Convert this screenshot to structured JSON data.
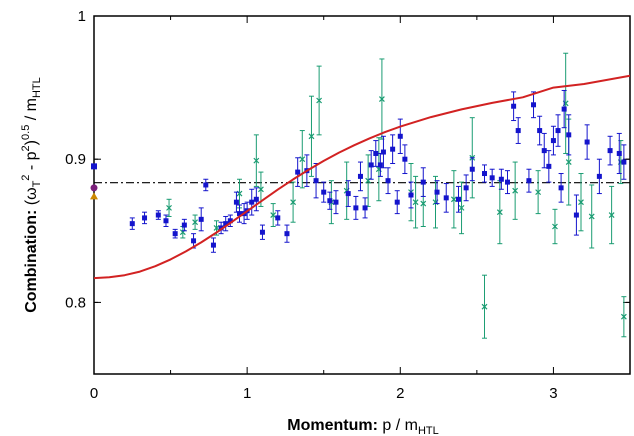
{
  "chart_data": {
    "type": "scatter",
    "xlabel": {
      "bold": "Momentum:",
      "main": " p / m",
      "sub": "HTL"
    },
    "ylabel": {
      "bold": "Combination:",
      "p1": "  (ω",
      "sub1": "T",
      "sup1": "2",
      "p2": " - p",
      "sup2": "2",
      "p3": ")",
      "sup3": "0.5",
      "p4": " / m",
      "sub2": "HTL"
    },
    "xlim": [
      0,
      3.5
    ],
    "ylim": [
      0.75,
      1.0
    ],
    "xticks": [
      0,
      1,
      2,
      3
    ],
    "xtick_labels": [
      "0",
      "1",
      "2",
      "3"
    ],
    "yticks": [
      0.8,
      0.9,
      1.0
    ],
    "ytick_labels": [
      "0.8",
      "0.9",
      "1"
    ],
    "colors": {
      "blue": "#1414cc",
      "green": "#1a9c72",
      "red": "#d22222",
      "black": "#000000",
      "purple": "#7a1f7a",
      "orange": "#cc8800"
    },
    "reference_line": {
      "y": 0.8836,
      "style": "dash-dot"
    },
    "curve": {
      "x": [
        0,
        0.1,
        0.2,
        0.3,
        0.4,
        0.5,
        0.6,
        0.7,
        0.8,
        0.9,
        1.0,
        1.1,
        1.2,
        1.3,
        1.4,
        1.5,
        1.6,
        1.7,
        1.8,
        1.9,
        2.0,
        2.2,
        2.4,
        2.6,
        2.8,
        3.0,
        3.2,
        3.5
      ],
      "y": [
        0.817,
        0.8175,
        0.819,
        0.8215,
        0.8253,
        0.83,
        0.8356,
        0.8419,
        0.8488,
        0.8562,
        0.8637,
        0.8713,
        0.8788,
        0.8859,
        0.8925,
        0.8988,
        0.9046,
        0.9098,
        0.9146,
        0.9189,
        0.9228,
        0.9294,
        0.9348,
        0.9393,
        0.9432,
        0.95,
        0.9525,
        0.9583
      ]
    },
    "series": [
      {
        "name": "blue",
        "marker": "square",
        "points": [
          [
            0.25,
            0.855,
            0.004
          ],
          [
            0.33,
            0.859,
            0.004
          ],
          [
            0.42,
            0.861,
            0.003
          ],
          [
            0.47,
            0.857,
            0.004
          ],
          [
            0.53,
            0.848,
            0.003
          ],
          [
            0.59,
            0.854,
            0.004
          ],
          [
            0.65,
            0.843,
            0.005
          ],
          [
            0.7,
            0.858,
            0.008
          ],
          [
            0.73,
            0.882,
            0.004
          ],
          [
            0.78,
            0.84,
            0.005
          ],
          [
            0.83,
            0.852,
            0.004
          ],
          [
            0.86,
            0.855,
            0.005
          ],
          [
            0.89,
            0.857,
            0.004
          ],
          [
            0.93,
            0.87,
            0.007
          ],
          [
            0.95,
            0.862,
            0.006
          ],
          [
            0.98,
            0.862,
            0.007
          ],
          [
            1.0,
            0.864,
            0.006
          ],
          [
            1.03,
            0.87,
            0.009
          ],
          [
            1.06,
            0.872,
            0.008
          ],
          [
            1.1,
            0.849,
            0.005
          ],
          [
            1.2,
            0.859,
            0.005
          ],
          [
            1.26,
            0.848,
            0.006
          ],
          [
            1.33,
            0.891,
            0.01
          ],
          [
            1.39,
            0.892,
            0.011
          ],
          [
            1.45,
            0.885,
            0.012
          ],
          [
            1.5,
            0.877,
            0.007
          ],
          [
            1.54,
            0.871,
            0.006
          ],
          [
            1.58,
            0.87,
            0.008
          ],
          [
            1.66,
            0.876,
            0.009
          ],
          [
            1.71,
            0.866,
            0.008
          ],
          [
            1.74,
            0.888,
            0.01
          ],
          [
            1.77,
            0.866,
            0.007
          ],
          [
            1.81,
            0.896,
            0.01
          ],
          [
            1.84,
            0.904,
            0.009
          ],
          [
            1.87,
            0.896,
            0.008
          ],
          [
            1.89,
            0.905,
            0.011
          ],
          [
            1.92,
            0.885,
            0.009
          ],
          [
            1.95,
            0.907,
            0.01
          ],
          [
            1.98,
            0.87,
            0.008
          ],
          [
            2.0,
            0.916,
            0.012
          ],
          [
            2.03,
            0.9,
            0.01
          ],
          [
            2.07,
            0.875,
            0.009
          ],
          [
            2.15,
            0.884,
            0.01
          ],
          [
            2.24,
            0.877,
            0.008
          ],
          [
            2.3,
            0.873,
            0.01
          ],
          [
            2.38,
            0.872,
            0.009
          ],
          [
            2.43,
            0.88,
            0.009
          ],
          [
            2.47,
            0.893,
            0.008
          ],
          [
            2.55,
            0.89,
            0.006
          ],
          [
            2.6,
            0.887,
            0.006
          ],
          [
            2.66,
            0.886,
            0.007
          ],
          [
            2.7,
            0.884,
            0.008
          ],
          [
            2.74,
            0.937,
            0.01
          ],
          [
            2.77,
            0.92,
            0.009
          ],
          [
            2.84,
            0.885,
            0.008
          ],
          [
            2.87,
            0.938,
            0.009
          ],
          [
            2.91,
            0.92,
            0.01
          ],
          [
            2.94,
            0.906,
            0.012
          ],
          [
            2.97,
            0.895,
            0.011
          ],
          [
            3.0,
            0.913,
            0.01
          ],
          [
            3.03,
            0.92,
            0.011
          ],
          [
            3.05,
            0.88,
            0.01
          ],
          [
            3.07,
            0.935,
            0.013
          ],
          [
            3.1,
            0.917,
            0.014
          ],
          [
            3.15,
            0.861,
            0.014
          ],
          [
            3.22,
            0.912,
            0.012
          ],
          [
            3.3,
            0.888,
            0.012
          ],
          [
            3.37,
            0.906,
            0.01
          ],
          [
            3.43,
            0.904,
            0.014
          ],
          [
            3.46,
            0.898,
            0.012
          ]
        ]
      },
      {
        "name": "green",
        "marker": "cross",
        "points": [
          [
            0.49,
            0.866,
            0.006
          ],
          [
            0.58,
            0.849,
            0.004
          ],
          [
            0.66,
            0.856,
            0.005
          ],
          [
            0.8,
            0.852,
            0.005
          ],
          [
            0.95,
            0.876,
            0.01
          ],
          [
            1.06,
            0.899,
            0.018
          ],
          [
            1.09,
            0.879,
            0.012
          ],
          [
            1.17,
            0.861,
            0.008
          ],
          [
            1.3,
            0.87,
            0.014
          ],
          [
            1.36,
            0.9,
            0.02
          ],
          [
            1.42,
            0.916,
            0.028
          ],
          [
            1.47,
            0.941,
            0.024
          ],
          [
            1.55,
            0.87,
            0.015
          ],
          [
            1.65,
            0.878,
            0.02
          ],
          [
            1.79,
            0.885,
            0.018
          ],
          [
            1.86,
            0.893,
            0.022
          ],
          [
            1.88,
            0.942,
            0.028
          ],
          [
            2.07,
            0.877,
            0.02
          ],
          [
            2.1,
            0.87,
            0.018
          ],
          [
            2.15,
            0.869,
            0.016
          ],
          [
            2.23,
            0.87,
            0.018
          ],
          [
            2.35,
            0.872,
            0.02
          ],
          [
            2.4,
            0.866,
            0.018
          ],
          [
            2.47,
            0.901,
            0.028
          ],
          [
            2.55,
            0.797,
            0.022
          ],
          [
            2.65,
            0.863,
            0.022
          ],
          [
            2.75,
            0.878,
            0.02
          ],
          [
            2.9,
            0.877,
            0.015
          ],
          [
            3.01,
            0.853,
            0.012
          ],
          [
            3.08,
            0.939,
            0.035
          ],
          [
            3.1,
            0.898,
            0.03
          ],
          [
            3.18,
            0.87,
            0.02
          ],
          [
            3.25,
            0.86,
            0.022
          ],
          [
            3.38,
            0.861,
            0.02
          ],
          [
            3.44,
            0.898,
            0.015
          ],
          [
            3.46,
            0.79,
            0.014
          ]
        ]
      },
      {
        "name": "axis-points",
        "marker": "mixed",
        "points": [
          [
            0.0,
            0.895,
            "square",
            "blue"
          ],
          [
            0.0,
            0.88,
            "circle",
            "purple"
          ],
          [
            0.0,
            0.874,
            "triangle",
            "orange"
          ]
        ]
      }
    ]
  }
}
